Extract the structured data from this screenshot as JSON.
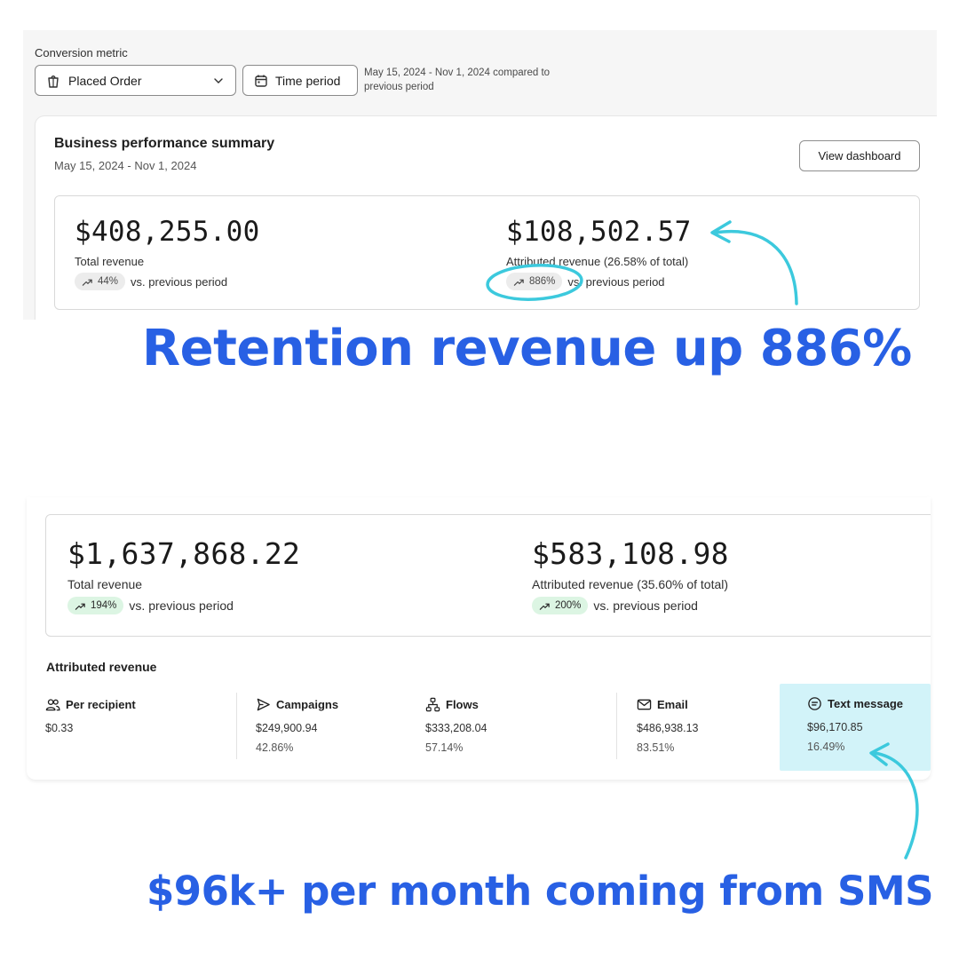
{
  "top_panel": {
    "conversion_metric_label": "Conversion metric",
    "metric_value": "Placed Order",
    "time_period_label": "Time period",
    "range_note": "May 15, 2024 - Nov 1, 2024 compared to previous period"
  },
  "summary": {
    "title": "Business performance summary",
    "date_range": "May 15, 2024 - Nov 1, 2024",
    "view_dashboard_label": "View dashboard",
    "total_revenue": {
      "value": "$408,255.00",
      "label": "Total revenue",
      "change": "44%",
      "suffix": "vs. previous period"
    },
    "attributed_revenue": {
      "value": "$108,502.57",
      "label": "Attributed revenue (26.58% of total)",
      "change": "886%",
      "suffix": "vs. previous period"
    }
  },
  "headline_top": "Retention revenue up 886%",
  "bottom_panel": {
    "total_revenue": {
      "value": "$1,637,868.22",
      "label": "Total revenue",
      "change": "194%",
      "suffix": "vs. previous period"
    },
    "attributed_revenue": {
      "value": "$583,108.98",
      "label": "Attributed revenue (35.60% of total)",
      "change": "200%",
      "suffix": "vs. previous period"
    },
    "attributed_title": "Attributed revenue",
    "columns": [
      {
        "icon": "people-icon",
        "label": "Per recipient",
        "value": "$0.33",
        "percent": ""
      },
      {
        "icon": "send-icon",
        "label": "Campaigns",
        "value": "$249,900.94",
        "percent": "42.86%"
      },
      {
        "icon": "flow-icon",
        "label": "Flows",
        "value": "$333,208.04",
        "percent": "57.14%"
      },
      {
        "icon": "mail-icon",
        "label": "Email",
        "value": "$486,938.13",
        "percent": "83.51%"
      },
      {
        "icon": "chat-icon",
        "label": "Text message",
        "value": "$96,170.85",
        "percent": "16.49%"
      }
    ]
  },
  "headline_bottom": "$96k+ per month coming from SMS",
  "colors": {
    "headline": "#2860e4",
    "annotation": "#3cc9dd",
    "sms_highlight": "#d2f3f9",
    "pill_green": "#dcf5e3"
  }
}
